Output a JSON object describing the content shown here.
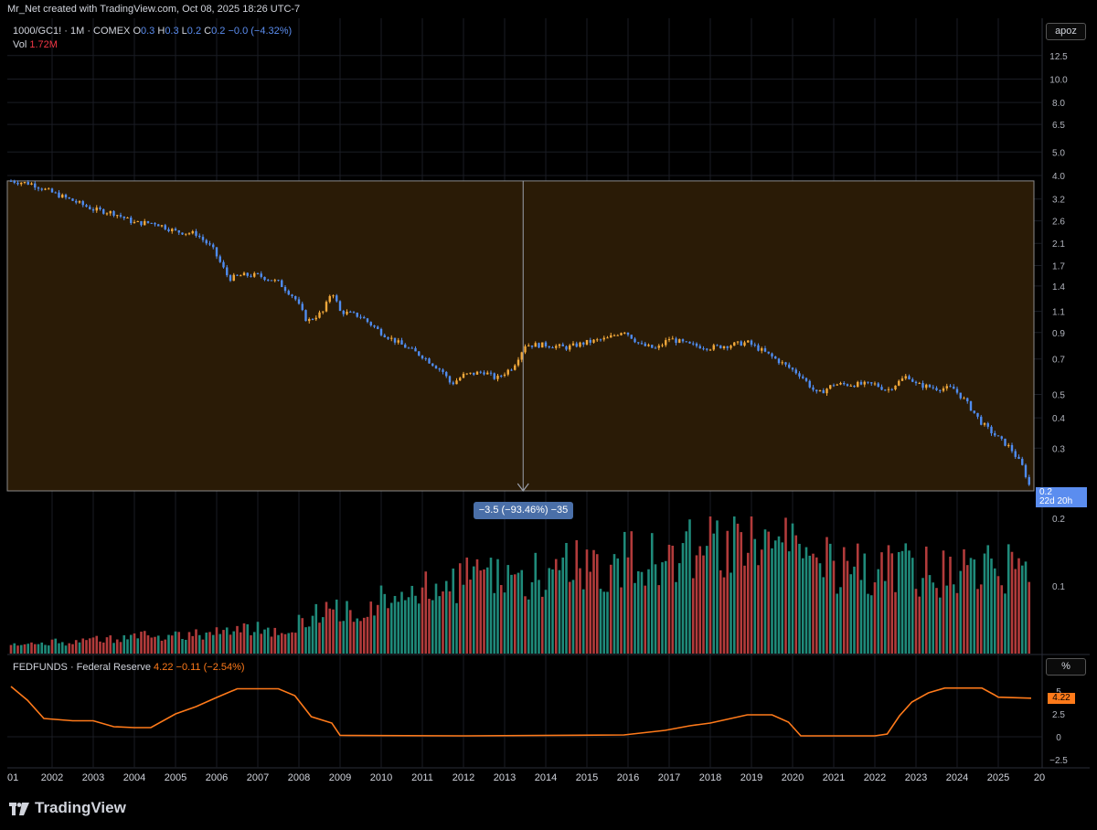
{
  "header": {
    "text": "Mr_Net created with TradingView.com, Oct 08, 2025 18:26 UTC-7"
  },
  "legend": {
    "symbol": "1000/GC1! · 1M · COMEX",
    "o_label": "O",
    "o_value": "0.3",
    "h_label": "H",
    "h_value": "0.3",
    "l_label": "L",
    "l_value": "0.2",
    "c_label": "C",
    "c_value": "0.2",
    "change": "−0.0 (−4.32%)",
    "vol_label": "Vol",
    "vol_value": "1.72M"
  },
  "fed_legend": {
    "name": "FEDFUNDS · Federal Reserve",
    "value": "4.22",
    "change": "−0.11 (−2.54%)"
  },
  "price_scale_label": "apoz",
  "pct_scale_label": "%",
  "last_price": {
    "value": "0.2",
    "countdown": "22d 20h"
  },
  "fed_last_value": "4.22",
  "measure": {
    "label": "−3.5 (−93.46%) −35"
  },
  "brand": "TradingView",
  "colors": {
    "up": "#f2a93b",
    "down": "#4f8cf0",
    "vol_up": "#1f8a7a",
    "vol_down": "#b23b3b",
    "fed": "#ff7a1a",
    "range_fill": "#2a1b06"
  },
  "chart_data": [
    {
      "type": "candlestick",
      "title": "1000/GC1! · 1M · COMEX",
      "scale": "log",
      "y_ticks": [
        "12.5",
        "10.0",
        "8.0",
        "6.5",
        "5.0",
        "4.0",
        "3.2",
        "2.6",
        "2.1",
        "1.7",
        "1.4",
        "1.1",
        "0.9",
        "0.7",
        "0.5",
        "0.4",
        "0.3"
      ],
      "x_ticks": [
        "01",
        "2002",
        "2003",
        "2004",
        "2005",
        "2006",
        "2007",
        "2008",
        "2009",
        "2010",
        "2011",
        "2012",
        "2013",
        "2014",
        "2015",
        "2016",
        "2017",
        "2018",
        "2019",
        "2020",
        "2021",
        "2022",
        "2023",
        "2024",
        "2025",
        "20"
      ],
      "x_range": [
        2001.0,
        2025.8
      ],
      "series": [
        {
          "name": "1000/GC1!",
          "points": [
            [
              2001.0,
              3.8
            ],
            [
              2001.5,
              3.7
            ],
            [
              2002.0,
              3.4
            ],
            [
              2002.5,
              3.15
            ],
            [
              2003.0,
              2.9
            ],
            [
              2003.5,
              2.8
            ],
            [
              2004.0,
              2.55
            ],
            [
              2004.5,
              2.55
            ],
            [
              2005.0,
              2.35
            ],
            [
              2005.5,
              2.3
            ],
            [
              2005.9,
              2.0
            ],
            [
              2006.3,
              1.5
            ],
            [
              2006.6,
              1.55
            ],
            [
              2007.0,
              1.55
            ],
            [
              2007.5,
              1.45
            ],
            [
              2007.9,
              1.25
            ],
            [
              2008.2,
              1.0
            ],
            [
              2008.6,
              1.1
            ],
            [
              2008.8,
              1.35
            ],
            [
              2009.0,
              1.1
            ],
            [
              2009.5,
              1.05
            ],
            [
              2010.0,
              0.9
            ],
            [
              2010.5,
              0.8
            ],
            [
              2011.0,
              0.72
            ],
            [
              2011.5,
              0.62
            ],
            [
              2011.7,
              0.55
            ],
            [
              2012.0,
              0.6
            ],
            [
              2012.5,
              0.62
            ],
            [
              2012.8,
              0.58
            ],
            [
              2013.2,
              0.65
            ],
            [
              2013.5,
              0.8
            ],
            [
              2014.0,
              0.8
            ],
            [
              2014.5,
              0.78
            ],
            [
              2015.0,
              0.82
            ],
            [
              2015.5,
              0.85
            ],
            [
              2015.9,
              0.92
            ],
            [
              2016.3,
              0.8
            ],
            [
              2016.7,
              0.77
            ],
            [
              2017.0,
              0.85
            ],
            [
              2017.5,
              0.8
            ],
            [
              2018.0,
              0.78
            ],
            [
              2018.5,
              0.8
            ],
            [
              2018.9,
              0.82
            ],
            [
              2019.3,
              0.75
            ],
            [
              2019.7,
              0.68
            ],
            [
              2020.2,
              0.6
            ],
            [
              2020.6,
              0.5
            ],
            [
              2021.0,
              0.55
            ],
            [
              2021.5,
              0.55
            ],
            [
              2022.0,
              0.55
            ],
            [
              2022.3,
              0.52
            ],
            [
              2022.8,
              0.6
            ],
            [
              2023.0,
              0.55
            ],
            [
              2023.5,
              0.53
            ],
            [
              2023.9,
              0.53
            ],
            [
              2024.2,
              0.47
            ],
            [
              2024.6,
              0.38
            ],
            [
              2025.0,
              0.33
            ],
            [
              2025.3,
              0.3
            ],
            [
              2025.6,
              0.25
            ],
            [
              2025.8,
              0.2
            ]
          ]
        }
      ],
      "measure_range": {
        "from": 3.8,
        "to": 0.2,
        "change": "−3.5 (−93.46%) −35"
      }
    },
    {
      "type": "bar",
      "title": "Vol",
      "y_ticks": [
        "0.2",
        "0.1"
      ],
      "series": [
        {
          "name": "Vol",
          "last": "1.72M"
        }
      ]
    },
    {
      "type": "line",
      "title": "FEDFUNDS · Federal Reserve",
      "y_ticks": [
        "5",
        "2.5",
        "0",
        "−2.5"
      ],
      "series": [
        {
          "name": "FEDFUNDS",
          "points": [
            [
              2001.0,
              5.5
            ],
            [
              2001.4,
              4.0
            ],
            [
              2001.8,
              2.0
            ],
            [
              2002.5,
              1.75
            ],
            [
              2003.0,
              1.75
            ],
            [
              2003.5,
              1.1
            ],
            [
              2004.0,
              1.0
            ],
            [
              2004.4,
              1.0
            ],
            [
              2005.0,
              2.5
            ],
            [
              2005.5,
              3.3
            ],
            [
              2006.0,
              4.3
            ],
            [
              2006.5,
              5.25
            ],
            [
              2007.0,
              5.25
            ],
            [
              2007.5,
              5.25
            ],
            [
              2007.9,
              4.5
            ],
            [
              2008.3,
              2.2
            ],
            [
              2008.8,
              1.5
            ],
            [
              2009.0,
              0.15
            ],
            [
              2012.0,
              0.1
            ],
            [
              2015.9,
              0.2
            ],
            [
              2016.9,
              0.7
            ],
            [
              2017.5,
              1.2
            ],
            [
              2018.0,
              1.5
            ],
            [
              2018.5,
              2.0
            ],
            [
              2018.9,
              2.4
            ],
            [
              2019.5,
              2.4
            ],
            [
              2019.9,
              1.6
            ],
            [
              2020.2,
              0.1
            ],
            [
              2021.0,
              0.1
            ],
            [
              2022.0,
              0.1
            ],
            [
              2022.3,
              0.3
            ],
            [
              2022.6,
              2.3
            ],
            [
              2022.9,
              3.8
            ],
            [
              2023.3,
              4.8
            ],
            [
              2023.7,
              5.33
            ],
            [
              2024.6,
              5.33
            ],
            [
              2024.9,
              4.6
            ],
            [
              2025.0,
              4.33
            ],
            [
              2025.8,
              4.22
            ]
          ]
        }
      ]
    }
  ]
}
